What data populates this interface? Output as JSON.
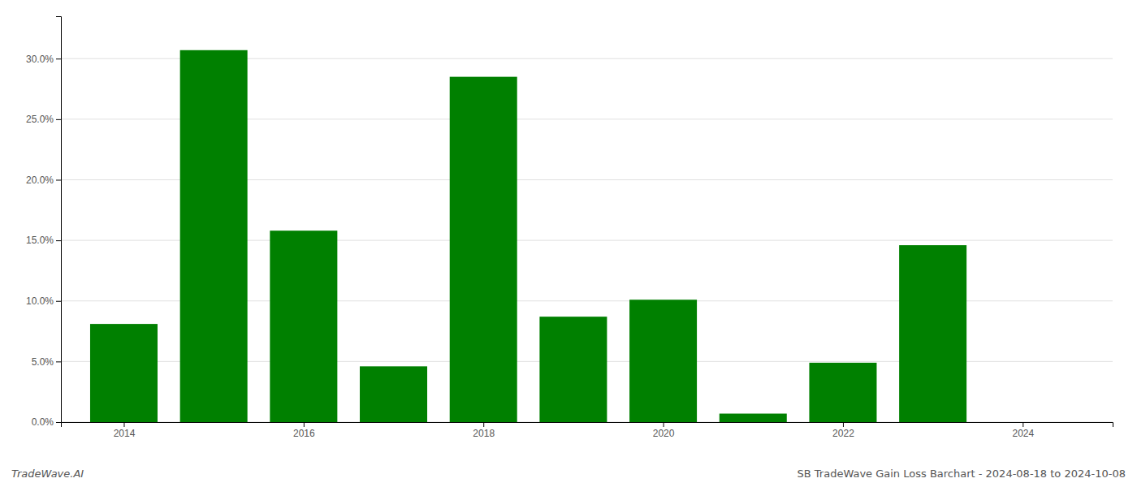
{
  "chart_data": {
    "type": "bar",
    "x": [
      2014,
      2015,
      2016,
      2017,
      2018,
      2019,
      2020,
      2021,
      2022,
      2023,
      2024
    ],
    "values": [
      0.081,
      0.307,
      0.158,
      0.046,
      0.285,
      0.087,
      0.101,
      0.007,
      0.049,
      0.146,
      0.0
    ],
    "color": "#008000",
    "xlim": [
      2013.3,
      2025.0
    ],
    "xticks": [
      2014,
      2016,
      2018,
      2020,
      2022,
      2024
    ],
    "ylim": [
      0,
      0.335
    ],
    "yticks": [
      {
        "value": 0.0,
        "label": "0.0%"
      },
      {
        "value": 0.05,
        "label": "5.0%"
      },
      {
        "value": 0.1,
        "label": "10.0%"
      },
      {
        "value": 0.15,
        "label": "15.0%"
      },
      {
        "value": 0.2,
        "label": "20.0%"
      },
      {
        "value": 0.25,
        "label": "25.0%"
      },
      {
        "value": 0.3,
        "label": "30.0%"
      }
    ],
    "grid": true,
    "annotations": [
      "TradeWave.AI",
      "SB TradeWave Gain Loss Barchart - 2024-08-18 to 2024-10-08"
    ]
  }
}
